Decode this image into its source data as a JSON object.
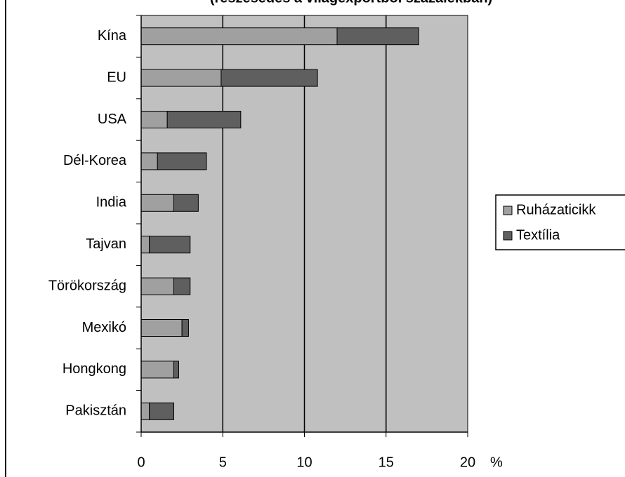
{
  "chart_data": {
    "type": "barh-stacked",
    "subtitle": "(részesedés a világexportból százalékban)",
    "x_label": "%",
    "categories": [
      "Kína",
      "EU",
      "USA",
      "Dél-Korea",
      "India",
      "Tajvan",
      "Törökország",
      "Mexikó",
      "Hongkong",
      "Pakisztán"
    ],
    "series": [
      {
        "name": "Ruházaticikk",
        "color": "#a0a0a0",
        "values": [
          12,
          4.9,
          1.6,
          1,
          2,
          0.5,
          2,
          2.5,
          2,
          0.5
        ]
      },
      {
        "name": "Textília",
        "color": "#5f5f5f",
        "values": [
          5,
          5.9,
          4.5,
          3,
          1.5,
          2.5,
          1,
          0.4,
          0.3,
          1.5
        ]
      }
    ],
    "xlim": [
      0,
      20
    ],
    "xticks": [
      0,
      5,
      10,
      15,
      20
    ],
    "grid": true,
    "legend": "right"
  }
}
